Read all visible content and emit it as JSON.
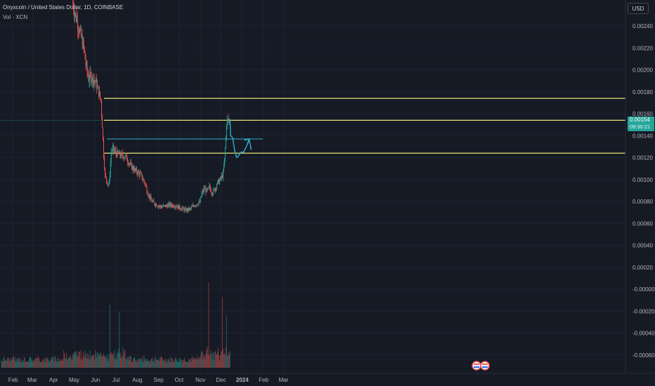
{
  "header": {
    "symbol_line": "Onyxcoin / United States Dollar, 1D, COINBASE",
    "volume_line": "Vol · XCN"
  },
  "currency_button": "USD",
  "last_price": {
    "value": "0.00154",
    "countdown": "09:30:21"
  },
  "colors": {
    "background": "#161a25",
    "up": "#26a69a",
    "down": "#ef5350",
    "level_line": "#e6e676",
    "trend_line": "#2ab1c8",
    "grid": "#1f2330",
    "axis_text": "#b2b5be"
  },
  "chart_data": {
    "type": "candlestick",
    "x_axis_labels": [
      "Feb",
      "Mar",
      "Apr",
      "May",
      "Jun",
      "Jul",
      "Aug",
      "Sep",
      "Oct",
      "Nov",
      "Dec",
      "2024",
      "Feb",
      "Mar"
    ],
    "y_axis_labels": [
      "0.00240",
      "0.00220",
      "0.00200",
      "0.00180",
      "0.00160",
      "0.00140",
      "0.00120",
      "0.00100",
      "0.00080",
      "0.00060",
      "0.00040",
      "0.00020",
      "-0.00000",
      "-0.00020",
      "-0.00040",
      "-0.00060"
    ],
    "y_range": [
      -0.00066,
      0.0026
    ],
    "horizontal_levels": [
      0.00174,
      0.00154,
      0.00124
    ],
    "trend_line": {
      "from": [
        "2023-06-18",
        0.00137
      ],
      "to": [
        "2024-01-31",
        0.00137
      ]
    },
    "projection_path": [
      [
        "2023-12-14",
        0.00155
      ],
      [
        "2023-12-15",
        0.0014
      ],
      [
        "2023-12-18",
        0.00138
      ],
      [
        "2023-12-21",
        0.00126
      ],
      [
        "2023-12-24",
        0.0012
      ],
      [
        "2023-12-27",
        0.00122
      ],
      [
        "2023-12-30",
        0.00125
      ],
      [
        "2024-01-03",
        0.00125
      ],
      [
        "2024-01-07",
        0.0013
      ],
      [
        "2024-01-11",
        0.00137
      ],
      [
        "2024-01-14",
        0.00127
      ]
    ],
    "price_path": [
      [
        "2023-04-29",
        0.0026
      ],
      [
        "2023-05-03",
        0.0025
      ],
      [
        "2023-05-07",
        0.0024
      ],
      [
        "2023-05-11",
        0.0023
      ],
      [
        "2023-05-15",
        0.0022
      ],
      [
        "2023-05-18",
        0.00205
      ],
      [
        "2023-05-22",
        0.00192
      ],
      [
        "2023-05-25",
        0.00194
      ],
      [
        "2023-05-29",
        0.00192
      ],
      [
        "2023-06-02",
        0.00188
      ],
      [
        "2023-06-05",
        0.00182
      ],
      [
        "2023-06-09",
        0.00172
      ],
      [
        "2023-06-11",
        0.0015
      ],
      [
        "2023-06-13",
        0.00122
      ],
      [
        "2023-06-15",
        0.00103
      ],
      [
        "2023-06-19",
        0.00096
      ],
      [
        "2023-06-21",
        0.00097
      ],
      [
        "2023-06-24",
        0.00125
      ],
      [
        "2023-06-27",
        0.00128
      ],
      [
        "2023-07-01",
        0.00124
      ],
      [
        "2023-07-08",
        0.00122
      ],
      [
        "2023-07-15",
        0.00121
      ],
      [
        "2023-07-22",
        0.00113
      ],
      [
        "2023-07-29",
        0.00108
      ],
      [
        "2023-08-05",
        0.00105
      ],
      [
        "2023-08-12",
        0.00097
      ],
      [
        "2023-08-16",
        0.00088
      ],
      [
        "2023-08-22",
        0.0008
      ],
      [
        "2023-08-29",
        0.00077
      ],
      [
        "2023-09-05",
        0.00075
      ],
      [
        "2023-09-12",
        0.00076
      ],
      [
        "2023-09-19",
        0.00077
      ],
      [
        "2023-09-26",
        0.00076
      ],
      [
        "2023-10-03",
        0.00074
      ],
      [
        "2023-10-10",
        0.00072
      ],
      [
        "2023-10-17",
        0.00073
      ],
      [
        "2023-10-24",
        0.00077
      ],
      [
        "2023-10-31",
        0.00079
      ],
      [
        "2023-11-03",
        0.00087
      ],
      [
        "2023-11-07",
        0.00092
      ],
      [
        "2023-11-10",
        0.00089
      ],
      [
        "2023-11-14",
        0.00093
      ],
      [
        "2023-11-18",
        0.00088
      ],
      [
        "2023-11-22",
        0.00091
      ],
      [
        "2023-11-25",
        0.00096
      ],
      [
        "2023-11-30",
        0.001
      ],
      [
        "2023-12-04",
        0.00105
      ],
      [
        "2023-12-06",
        0.00118
      ],
      [
        "2023-12-08",
        0.00138
      ],
      [
        "2023-12-09",
        0.00152
      ],
      [
        "2023-12-11",
        0.00154
      ],
      [
        "2023-12-13",
        0.00154
      ]
    ],
    "volume_spikes": [
      [
        "2023-06-22",
        0.00045
      ],
      [
        "2023-07-06",
        0.00038
      ],
      [
        "2023-11-13",
        0.00065
      ],
      [
        "2023-12-03",
        0.00052
      ],
      [
        "2023-12-09",
        0.00035
      ]
    ]
  }
}
